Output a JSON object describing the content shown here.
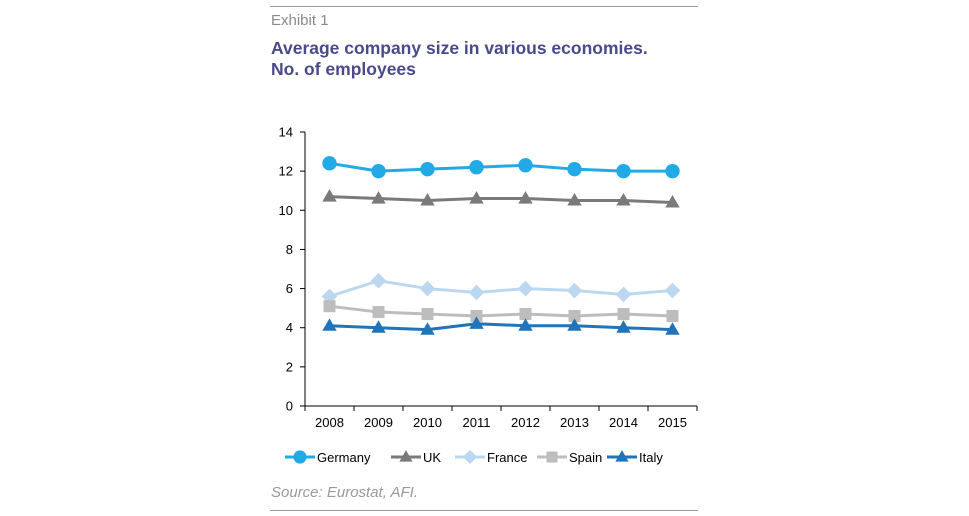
{
  "header": {
    "exhibit": "Exhibit 1",
    "title_line1": "Average company size in various economies.",
    "title_line2": "No. of employees"
  },
  "footer": {
    "source": "Source: Eurostat, AFI."
  },
  "chart_data": {
    "type": "line",
    "x": [
      "2008",
      "2009",
      "2010",
      "2011",
      "2012",
      "2013",
      "2014",
      "2015"
    ],
    "ylim": [
      0,
      14
    ],
    "yticks": [
      0,
      2,
      4,
      6,
      8,
      10,
      12,
      14
    ],
    "grid": false,
    "legend_position": "bottom",
    "series": [
      {
        "name": "Germany",
        "color": "#22a9e6",
        "marker": "circle",
        "values": [
          12.4,
          12.0,
          12.1,
          12.2,
          12.3,
          12.1,
          12.0,
          12.0
        ]
      },
      {
        "name": "UK",
        "color": "#7a7a7a",
        "marker": "triangle",
        "values": [
          10.7,
          10.6,
          10.5,
          10.6,
          10.6,
          10.5,
          10.5,
          10.4
        ]
      },
      {
        "name": "France",
        "color": "#bcd8f0",
        "marker": "diamond",
        "values": [
          5.6,
          6.4,
          6.0,
          5.8,
          6.0,
          5.9,
          5.7,
          5.9
        ]
      },
      {
        "name": "Spain",
        "color": "#bdbdbd",
        "marker": "square",
        "values": [
          5.1,
          4.8,
          4.7,
          4.6,
          4.7,
          4.6,
          4.7,
          4.6
        ]
      },
      {
        "name": "Italy",
        "color": "#1f74ba",
        "marker": "triangle",
        "values": [
          4.1,
          4.0,
          3.9,
          4.2,
          4.1,
          4.1,
          4.0,
          3.9
        ]
      }
    ]
  }
}
